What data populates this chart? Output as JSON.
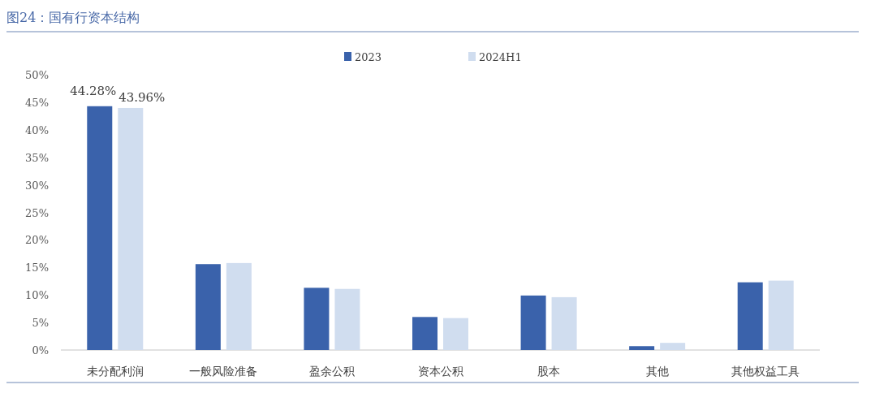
{
  "chart_data": {
    "type": "bar",
    "title": "图24：国有行资本结构",
    "categories": [
      "未分配利润",
      "一般风险准备",
      "盈余公积",
      "资本公积",
      "股本",
      "其他",
      "其他权益工具"
    ],
    "series": [
      {
        "name": "2023",
        "color": "#3a62ab",
        "values": [
          44.28,
          15.6,
          11.3,
          6.0,
          9.9,
          0.7,
          12.3
        ],
        "value_labels": [
          "44.28%",
          null,
          null,
          null,
          null,
          null,
          null
        ]
      },
      {
        "name": "2024H1",
        "color": "#d0ddef",
        "values": [
          43.96,
          15.8,
          11.1,
          5.8,
          9.6,
          1.3,
          12.6
        ],
        "value_labels": [
          "43.96%",
          null,
          null,
          null,
          null,
          null,
          null
        ]
      }
    ],
    "ylim": [
      0,
      50
    ],
    "yticks": [
      {
        "value": 0,
        "label": "0%"
      },
      {
        "value": 5,
        "label": "5%"
      },
      {
        "value": 10,
        "label": "10%"
      },
      {
        "value": 15,
        "label": "15%"
      },
      {
        "value": 20,
        "label": "20%"
      },
      {
        "value": 25,
        "label": "25%"
      },
      {
        "value": 30,
        "label": "30%"
      },
      {
        "value": 35,
        "label": "35%"
      },
      {
        "value": 40,
        "label": "40%"
      },
      {
        "value": 45,
        "label": "45%"
      },
      {
        "value": 50,
        "label": "50%"
      }
    ],
    "grid": false,
    "legend": "top"
  }
}
